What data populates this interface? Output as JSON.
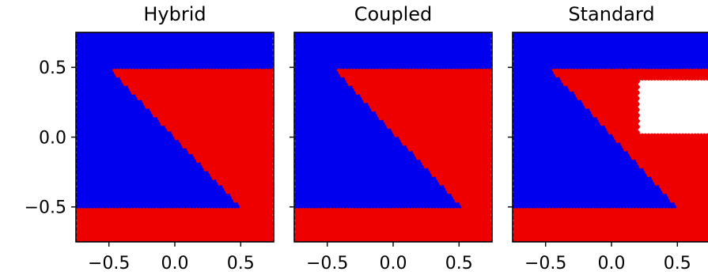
{
  "chart_data": [
    {
      "type": "scatter",
      "title": "Hybrid",
      "xlim": [
        -0.75,
        0.75
      ],
      "ylim": [
        -0.75,
        0.75
      ],
      "xticks": [
        -0.5,
        0.0,
        0.5
      ],
      "xtick_labels": [
        "−0.5",
        "0.0",
        "0.5"
      ],
      "yticks": [
        0.5,
        0.0,
        -0.5
      ],
      "ytick_labels": [
        "0.5",
        "0.0",
        "−0.5"
      ],
      "grid": false,
      "colors": [
        "#0000ee",
        "#ee0000"
      ],
      "regions": {
        "top_band": {
          "color": "blue",
          "y_min": 0.5
        },
        "bottom_band": {
          "color": "red",
          "y_max": -0.5
        },
        "red_wedge": {
          "color": "red",
          "edge_from": [
            -0.5,
            0.5
          ],
          "edge_to": [
            0.5,
            -0.5
          ],
          "x_max": 0.75
        },
        "shift": 0.0,
        "notch": null
      }
    },
    {
      "type": "scatter",
      "title": "Coupled",
      "xlim": [
        -0.75,
        0.75
      ],
      "ylim": [
        -0.75,
        0.75
      ],
      "xticks": [
        -0.5,
        0.0,
        0.5
      ],
      "xtick_labels": [
        "−0.5",
        "0.0",
        "0.5"
      ],
      "yticks": [
        0.5,
        0.0,
        -0.5
      ],
      "grid": false,
      "colors": [
        "#0000ee",
        "#ee0000"
      ],
      "regions": {
        "top_band": {
          "color": "blue",
          "y_min": 0.5
        },
        "bottom_band": {
          "color": "red",
          "y_max": -0.5
        },
        "red_wedge": {
          "color": "red",
          "edge_from": [
            -0.45,
            0.5
          ],
          "edge_to": [
            0.52,
            -0.5
          ],
          "x_max": 0.75
        },
        "shift": 0.04,
        "notch": null
      }
    },
    {
      "type": "scatter",
      "title": "Standard",
      "xlim": [
        -0.75,
        0.75
      ],
      "ylim": [
        -0.75,
        0.75
      ],
      "xticks": [
        -0.5,
        0.0,
        0.5
      ],
      "xtick_labels": [
        "−0.5",
        "0.0",
        "0.5"
      ],
      "yticks": [
        0.5,
        0.0,
        -0.5
      ],
      "grid": false,
      "colors": [
        "#0000ee",
        "#ee0000"
      ],
      "regions": {
        "top_band": {
          "color": "blue",
          "y_min": 0.5
        },
        "bottom_band": {
          "color": "red",
          "y_max": -0.5
        },
        "red_wedge": {
          "color": "red",
          "edge_from": [
            -0.47,
            0.5
          ],
          "edge_to": [
            0.5,
            -0.5
          ],
          "x_max": 0.75
        },
        "shift": 0.0,
        "notch": {
          "x_min": 0.2,
          "y_min": 0.03,
          "y_max": 0.4
        }
      }
    }
  ]
}
